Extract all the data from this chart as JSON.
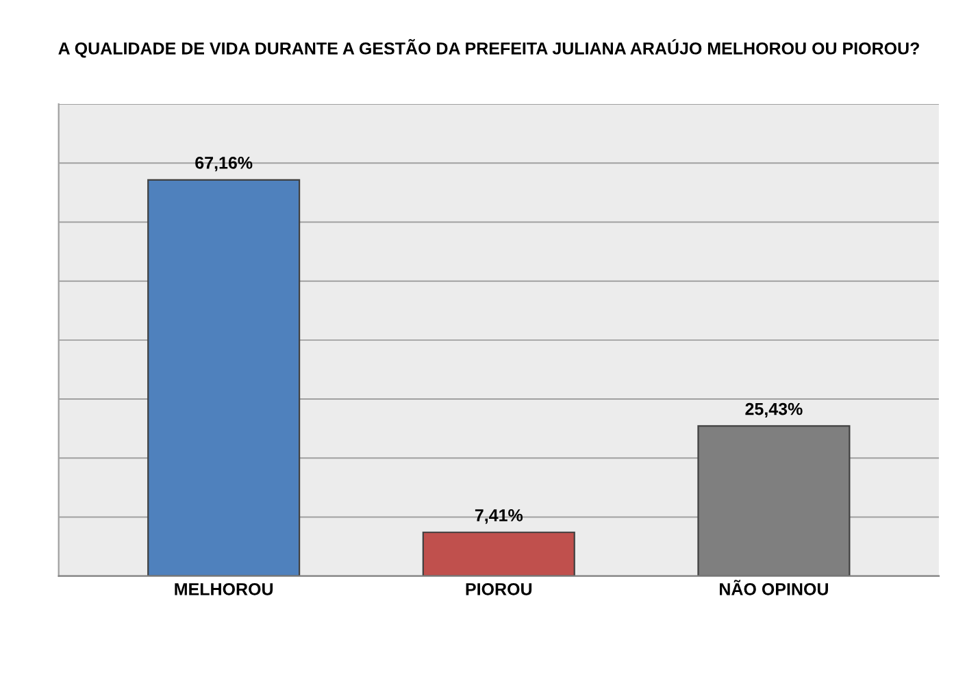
{
  "chart_data": {
    "type": "bar",
    "title": "A QUALIDADE DE VIDA DURANTE A GESTÃO DA PREFEITA JULIANA ARAÚJO MELHOROU OU PIOROU?",
    "categories": [
      "MELHOROU",
      "PIOROU",
      "NÃO OPINOU"
    ],
    "values": [
      67.16,
      7.41,
      25.43
    ],
    "colors": [
      "#4f81bd",
      "#c0504d",
      "#7f7f7f"
    ],
    "value_labels": [
      "67,16%",
      "7,41%",
      "25,43%"
    ],
    "ylim": [
      0,
      80
    ],
    "yticks": [
      {
        "value": 0,
        "label": null
      },
      {
        "value": 10,
        "label": null
      },
      {
        "value": 20,
        "label": null
      },
      {
        "value": 30,
        "label": null
      },
      {
        "value": 40,
        "label": null
      },
      {
        "value": 50,
        "label": null
      },
      {
        "value": 60,
        "label": null
      },
      {
        "value": 70,
        "label": null
      },
      {
        "value": 80,
        "label": null
      }
    ],
    "grid": "y",
    "tick_labels": "x"
  }
}
